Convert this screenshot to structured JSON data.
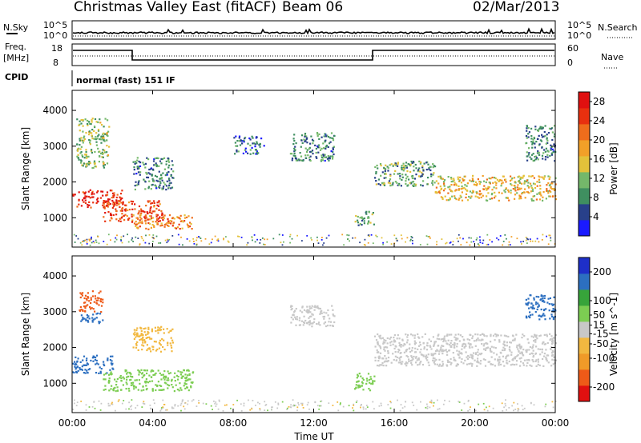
{
  "header": {
    "station_title": "Christmas Valley East (fitACF)",
    "beam_label": "Beam 06",
    "date": "02/Mar/2013"
  },
  "aux_panels": {
    "nsky_label": "N.Sky",
    "nsky_ticks": [
      "10^5",
      "10^0"
    ],
    "nsearch_label": "N.Search",
    "nsearch_ticks": [
      "10^5",
      "10^0"
    ],
    "freq_label": "Freq.",
    "freq_unit": "[MHz]",
    "freq_ticks": [
      "18",
      "8"
    ],
    "nave_label": "Nave",
    "nave_ticks": [
      "60",
      "0"
    ],
    "cpid_label": "CPID",
    "cpid_value": "normal (fast) 151 IF"
  },
  "colors": {
    "power_scale": [
      "#1a1aff",
      "#28408a",
      "#3f8f60",
      "#74b86a",
      "#e3c23a",
      "#f2a028",
      "#ef6d1c",
      "#e8300f",
      "#e01010"
    ],
    "velocity_scale": [
      "#e01010",
      "#ee5a18",
      "#f09a28",
      "#f2b840",
      "#c8c8c8",
      "#7ccd52",
      "#37a43a",
      "#2c6fc0",
      "#1e2fc8"
    ]
  },
  "chart_data": [
    {
      "type": "heatmap",
      "panel": "power",
      "xlabel": "Time UT",
      "ylabel": "Slant Range [km]",
      "x_ticks": [
        "00:00",
        "04:00",
        "08:00",
        "12:00",
        "16:00",
        "20:00",
        "00:00"
      ],
      "xlim_hours": [
        0,
        24
      ],
      "y_ticks": [
        1000,
        2000,
        3000,
        4000
      ],
      "ylim": [
        180,
        4560
      ],
      "colorbar": {
        "label": "Power [dB]",
        "ticks": [
          4,
          8,
          12,
          16,
          20,
          24,
          28
        ],
        "range": [
          0,
          30
        ]
      },
      "scatter_regions": [
        {
          "t0": 0.0,
          "t1": 2.5,
          "r0": 1300,
          "r1": 1800,
          "value": 26
        },
        {
          "t0": 1.5,
          "t1": 4.5,
          "r0": 900,
          "r1": 1500,
          "value": 24
        },
        {
          "t0": 3.0,
          "t1": 6.0,
          "r0": 700,
          "r1": 1100,
          "value": 20
        },
        {
          "t0": 0.2,
          "t1": 1.8,
          "r0": 2400,
          "r1": 3800,
          "value": 12
        },
        {
          "t0": 3.0,
          "t1": 5.0,
          "r0": 1800,
          "r1": 2700,
          "value": 8
        },
        {
          "t0": 8.0,
          "t1": 9.5,
          "r0": 2800,
          "r1": 3300,
          "value": 6
        },
        {
          "t0": 10.8,
          "t1": 13.0,
          "r0": 2600,
          "r1": 3400,
          "value": 8
        },
        {
          "t0": 14.0,
          "t1": 15.0,
          "r0": 800,
          "r1": 1200,
          "value": 10
        },
        {
          "t0": 15.0,
          "t1": 18.0,
          "r0": 1900,
          "r1": 2600,
          "value": 10
        },
        {
          "t0": 18.0,
          "t1": 24.0,
          "r0": 1500,
          "r1": 2200,
          "value": 16
        },
        {
          "t0": 22.5,
          "t1": 24.0,
          "r0": 2600,
          "r1": 3600,
          "value": 8
        }
      ]
    },
    {
      "type": "heatmap",
      "panel": "velocity",
      "xlabel": "Time UT",
      "ylabel": "Slant Range [km]",
      "x_ticks": [
        "00:00",
        "04:00",
        "08:00",
        "12:00",
        "16:00",
        "20:00",
        "00:00"
      ],
      "xlim_hours": [
        0,
        24
      ],
      "y_ticks": [
        1000,
        2000,
        3000,
        4000
      ],
      "ylim": [
        180,
        4560
      ],
      "colorbar": {
        "label": "Velocity [m s^-1]",
        "ticks": [
          200,
          100,
          50,
          15,
          -15,
          -50,
          -100,
          -200
        ],
        "range": [
          -250,
          250
        ]
      },
      "scatter_regions": [
        {
          "t0": 0.0,
          "t1": 2.0,
          "r0": 1300,
          "r1": 1800,
          "value": 150
        },
        {
          "t0": 1.5,
          "t1": 6.0,
          "r0": 800,
          "r1": 1400,
          "value": 40
        },
        {
          "t0": 0.3,
          "t1": 1.5,
          "r0": 3000,
          "r1": 3600,
          "value": -180
        },
        {
          "t0": 0.3,
          "t1": 1.5,
          "r0": 2700,
          "r1": 3000,
          "value": 150
        },
        {
          "t0": 3.0,
          "t1": 5.0,
          "r0": 1900,
          "r1": 2600,
          "value": -60
        },
        {
          "t0": 10.8,
          "t1": 13.0,
          "r0": 2600,
          "r1": 3200,
          "value": -10
        },
        {
          "t0": 14.0,
          "t1": 15.0,
          "r0": 800,
          "r1": 1300,
          "value": 40
        },
        {
          "t0": 15.0,
          "t1": 24.0,
          "r0": 1500,
          "r1": 2400,
          "value": 0
        },
        {
          "t0": 22.5,
          "t1": 24.0,
          "r0": 2800,
          "r1": 3500,
          "value": 180
        }
      ]
    }
  ]
}
